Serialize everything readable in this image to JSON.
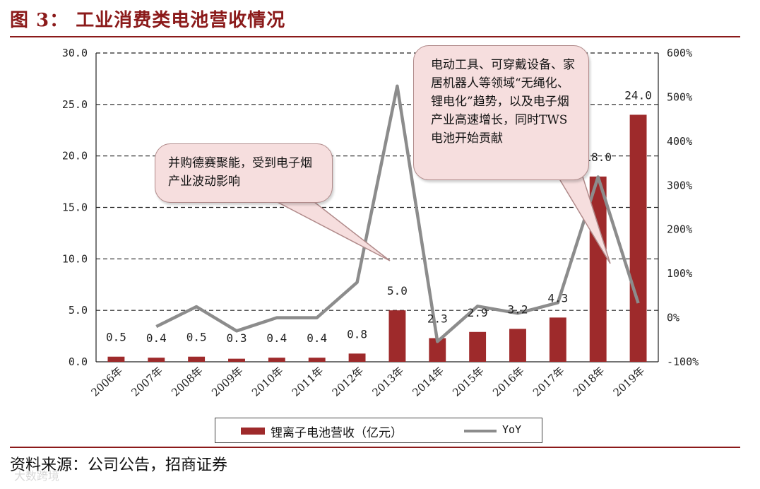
{
  "header": {
    "title": "图 3：  工业消费类电池营收情况"
  },
  "footer": {
    "source": "资料来源：公司公告，招商证券",
    "watermark": "大数跨境"
  },
  "callouts": [
    {
      "text": "并购德赛聚能，受到电子烟产业波动影响"
    },
    {
      "text": "电动工具、可穿戴设备、家居机器人等领域“无绳化、锂电化”趋势，以及电子烟产业高速增长，同时TWS电池开始贡献"
    }
  ],
  "colors": {
    "bar": "#9e2a2b",
    "line": "#8c8c8c",
    "accent": "#8b1a1a"
  },
  "chart_data": {
    "type": "bar",
    "categories": [
      "2006年",
      "2007年",
      "2008年",
      "2009年",
      "2010年",
      "2011年",
      "2012年",
      "2013年",
      "2014年",
      "2015年",
      "2016年",
      "2017年",
      "2018年",
      "2019年"
    ],
    "series": [
      {
        "name": "锂离子电池营收（亿元）",
        "type": "bar",
        "axis": "left",
        "values": [
          0.5,
          0.4,
          0.5,
          0.3,
          0.4,
          0.4,
          0.8,
          5.0,
          2.3,
          2.9,
          3.2,
          4.3,
          18.0,
          24.0
        ],
        "labels": [
          "0.5",
          "0.4",
          "0.5",
          "0.3",
          "0.4",
          "0.4",
          "0.8",
          "5.0",
          "2.3",
          "2.9",
          "3.2",
          "4.3",
          "18.0",
          "24.0"
        ]
      },
      {
        "name": "YoY",
        "type": "line",
        "axis": "right",
        "values": [
          null,
          -20,
          25,
          -30,
          0,
          0,
          80,
          525,
          -54,
          26,
          10,
          34,
          319,
          33
        ]
      }
    ],
    "left_axis": {
      "min": 0,
      "max": 30,
      "ticks": [
        "0.0",
        "5.0",
        "10.0",
        "15.0",
        "20.0",
        "25.0",
        "30.0"
      ]
    },
    "right_axis": {
      "min": -100,
      "max": 600,
      "ticks": [
        "-100%",
        "0%",
        "100%",
        "200%",
        "300%",
        "400%",
        "500%",
        "600%"
      ]
    },
    "grid": "horizontal-dashed",
    "legend": "bottom"
  }
}
